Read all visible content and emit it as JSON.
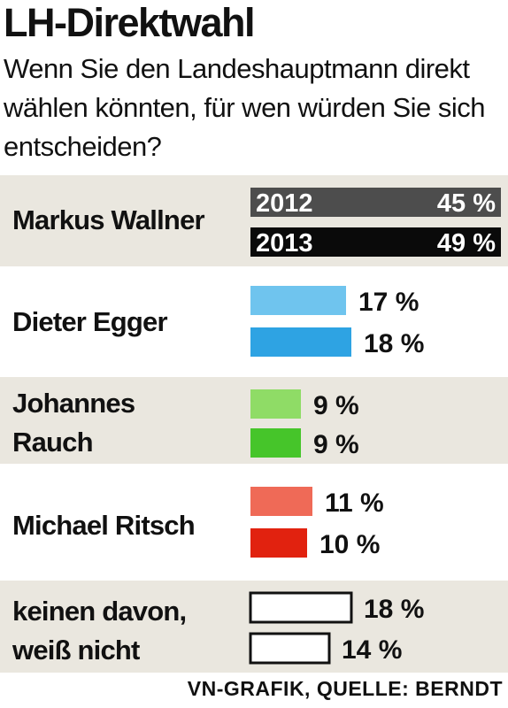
{
  "chart_data": {
    "type": "bar",
    "title": "LH-Direktwahl",
    "subtitle": "Wenn Sie den Landeshauptmann direkt wählen könnten, für wen würden Sie sich entscheiden?",
    "source": "VN-GRAFIK, QUELLE: BERNDT",
    "series": [
      {
        "name": "2012"
      },
      {
        "name": "2013"
      }
    ],
    "categories": [
      {
        "label_lines": [
          "Markus Wallner"
        ],
        "values": [
          45,
          49
        ],
        "labels": [
          "45 %",
          "49 %"
        ],
        "colors": [
          "#4d4d4d",
          "#0a0a0a"
        ],
        "style": "full"
      },
      {
        "label_lines": [
          "Dieter Egger"
        ],
        "values": [
          17,
          18
        ],
        "labels": [
          "17 %",
          "18 %"
        ],
        "colors": [
          "#6fc4ee",
          "#2ea3e3"
        ],
        "style": "bar"
      },
      {
        "label_lines": [
          "Johannes",
          "Rauch"
        ],
        "values": [
          9,
          9
        ],
        "labels": [
          "9 %",
          "9 %"
        ],
        "colors": [
          "#8fdc66",
          "#46c52a"
        ],
        "style": "bar"
      },
      {
        "label_lines": [
          "Michael Ritsch"
        ],
        "values": [
          11,
          10
        ],
        "labels": [
          "11 %",
          "10 %"
        ],
        "colors": [
          "#ef6a57",
          "#e1220f"
        ],
        "style": "bar"
      },
      {
        "label_lines": [
          "keinen davon,",
          "weiß nicht"
        ],
        "values": [
          18,
          14
        ],
        "labels": [
          "18 %",
          "14 %"
        ],
        "colors": [
          "#ffffff",
          "#ffffff"
        ],
        "style": "outline"
      }
    ]
  }
}
